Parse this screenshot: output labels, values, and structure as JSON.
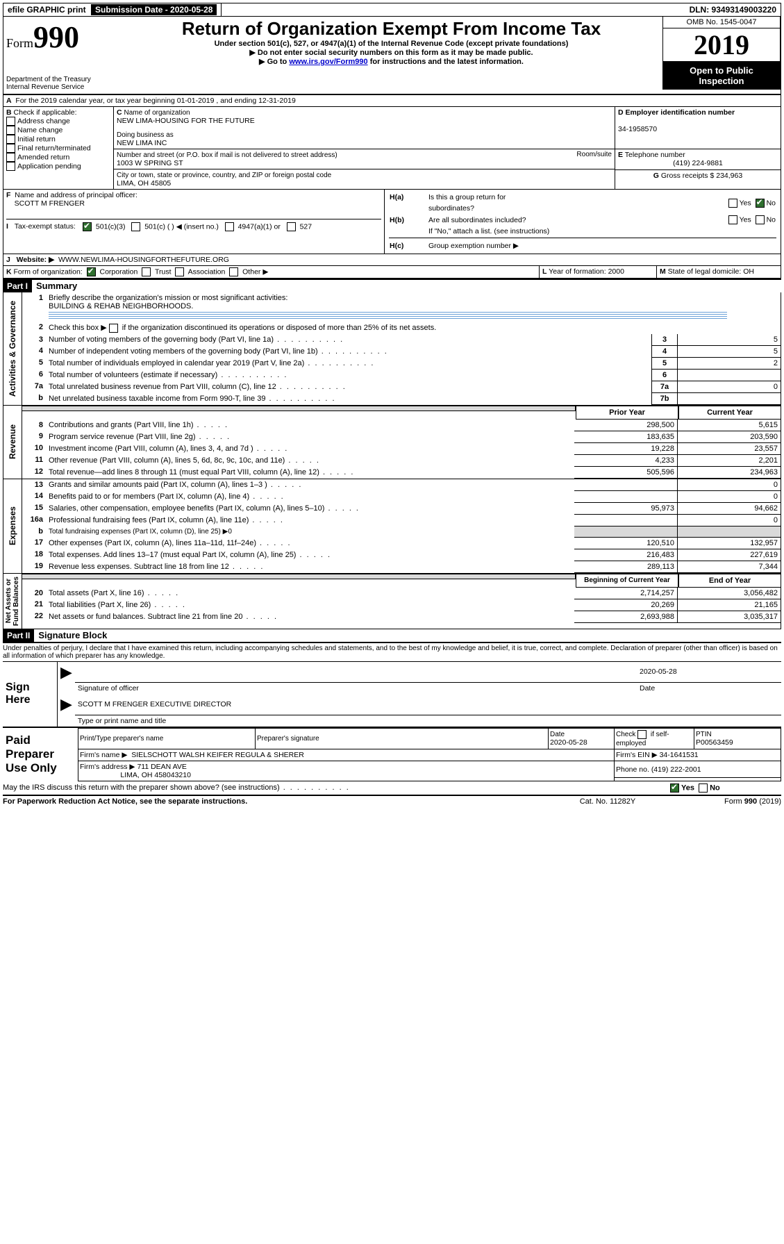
{
  "topbar": {
    "efile": "efile GRAPHIC print",
    "sub_date_label": "Submission Date - 2020-05-28",
    "dln": "DLN: 93493149003220"
  },
  "header": {
    "form_label": "Form",
    "form_no": "990",
    "title": "Return of Organization Exempt From Income Tax",
    "sub1": "Under section 501(c), 527, or 4947(a)(1) of the Internal Revenue Code (except private foundations)",
    "sub2": "Do not enter social security numbers on this form as it may be made public.",
    "sub3_a": "Go to ",
    "sub3_link": "www.irs.gov/Form990",
    "sub3_b": " for instructions and the latest information.",
    "dept": "Department of the Treasury",
    "irs": "Internal Revenue Service",
    "omb": "OMB No. 1545-0047",
    "year": "2019",
    "otp1": "Open to Public",
    "otp2": "Inspection"
  },
  "a": {
    "line": "For the 2019 calendar year, or tax year beginning 01-01-2019   , and ending 12-31-2019"
  },
  "b": {
    "label": "Check if applicable:",
    "items": [
      "Address change",
      "Name change",
      "Initial return",
      "Final return/terminated",
      "Amended return",
      "Application pending"
    ]
  },
  "c": {
    "name_label": "Name of organization",
    "name": "NEW LIMA-HOUSING FOR THE FUTURE",
    "dba_label": "Doing business as",
    "dba": "NEW LIMA INC",
    "addr_label": "Number and street (or P.O. box if mail is not delivered to street address)",
    "room_label": "Room/suite",
    "addr": "1003 W SPRING ST",
    "city_label": "City or town, state or province, country, and ZIP or foreign postal code",
    "city": "LIMA, OH  45805"
  },
  "d": {
    "label": "Employer identification number",
    "val": "34-1958570"
  },
  "e": {
    "label": "Telephone number",
    "val": "(419) 224-9881"
  },
  "g": {
    "label": "Gross receipts $",
    "val": "234,963"
  },
  "f": {
    "label": "Name and address of principal officer:",
    "val": "SCOTT M FRENGER"
  },
  "h": {
    "a": "Is this a group return for",
    "a2": "subordinates?",
    "b": "Are all subordinates included?",
    "b2": "If \"No,\" attach a list. (see instructions)",
    "c": "Group exemption number ▶",
    "yes": "Yes",
    "no": "No"
  },
  "i": {
    "label": "Tax-exempt status:",
    "o1": "501(c)(3)",
    "o2": "501(c) (  ) ◀ (insert no.)",
    "o3": "4947(a)(1) or",
    "o4": "527"
  },
  "j": {
    "label": "Website: ▶",
    "val": "WWW.NEWLIMA-HOUSINGFORTHEFUTURE.ORG"
  },
  "k": {
    "label": "Form of organization:",
    "o1": "Corporation",
    "o2": "Trust",
    "o3": "Association",
    "o4": "Other ▶"
  },
  "l": {
    "label": "Year of formation:",
    "val": "2000"
  },
  "m": {
    "label": "State of legal domicile:",
    "val": "OH"
  },
  "part1": {
    "hdr": "Part I",
    "title": "Summary"
  },
  "q1": {
    "num": "1",
    "text": "Briefly describe the organization's mission or most significant activities:",
    "ans": "BUILDING & REHAB NEIGHBORHOODS."
  },
  "q2": {
    "num": "2",
    "text": "Check this box ▶",
    "text2": " if the organization discontinued its operations or disposed of more than 25% of its net assets."
  },
  "gov_lines": [
    {
      "n": "3",
      "t": "Number of voting members of the governing body (Part VI, line 1a)",
      "ln": "3",
      "v": "5"
    },
    {
      "n": "4",
      "t": "Number of independent voting members of the governing body (Part VI, line 1b)",
      "ln": "4",
      "v": "5"
    },
    {
      "n": "5",
      "t": "Total number of individuals employed in calendar year 2019 (Part V, line 2a)",
      "ln": "5",
      "v": "2"
    },
    {
      "n": "6",
      "t": "Total number of volunteers (estimate if necessary)",
      "ln": "6",
      "v": ""
    },
    {
      "n": "7a",
      "t": "Total unrelated business revenue from Part VIII, column (C), line 12",
      "ln": "7a",
      "v": "0"
    },
    {
      "n": "b",
      "t": "Net unrelated business taxable income from Form 990-T, line 39",
      "ln": "7b",
      "v": ""
    }
  ],
  "col_hdr": {
    "py": "Prior Year",
    "cy": "Current Year",
    "by": "Beginning of Current Year",
    "ey": "End of Year"
  },
  "rev_lines": [
    {
      "n": "8",
      "t": "Contributions and grants (Part VIII, line 1h)",
      "py": "298,500",
      "cy": "5,615"
    },
    {
      "n": "9",
      "t": "Program service revenue (Part VIII, line 2g)",
      "py": "183,635",
      "cy": "203,590"
    },
    {
      "n": "10",
      "t": "Investment income (Part VIII, column (A), lines 3, 4, and 7d )",
      "py": "19,228",
      "cy": "23,557"
    },
    {
      "n": "11",
      "t": "Other revenue (Part VIII, column (A), lines 5, 6d, 8c, 9c, 10c, and 11e)",
      "py": "4,233",
      "cy": "2,201"
    },
    {
      "n": "12",
      "t": "Total revenue—add lines 8 through 11 (must equal Part VIII, column (A), line 12)",
      "py": "505,596",
      "cy": "234,963"
    }
  ],
  "exp_lines": [
    {
      "n": "13",
      "t": "Grants and similar amounts paid (Part IX, column (A), lines 1–3 )",
      "py": "",
      "cy": "0"
    },
    {
      "n": "14",
      "t": "Benefits paid to or for members (Part IX, column (A), line 4)",
      "py": "",
      "cy": "0"
    },
    {
      "n": "15",
      "t": "Salaries, other compensation, employee benefits (Part IX, column (A), lines 5–10)",
      "py": "95,973",
      "cy": "94,662"
    },
    {
      "n": "16a",
      "t": "Professional fundraising fees (Part IX, column (A), line 11e)",
      "py": "",
      "cy": "0"
    },
    {
      "n": "b",
      "t": "Total fundraising expenses (Part IX, column (D), line 25) ▶0",
      "py": "GREY",
      "cy": "GREY"
    },
    {
      "n": "17",
      "t": "Other expenses (Part IX, column (A), lines 11a–11d, 11f–24e)",
      "py": "120,510",
      "cy": "132,957"
    },
    {
      "n": "18",
      "t": "Total expenses. Add lines 13–17 (must equal Part IX, column (A), line 25)",
      "py": "216,483",
      "cy": "227,619"
    },
    {
      "n": "19",
      "t": "Revenue less expenses. Subtract line 18 from line 12",
      "py": "289,113",
      "cy": "7,344"
    }
  ],
  "na_lines": [
    {
      "n": "20",
      "t": "Total assets (Part X, line 16)",
      "py": "2,714,257",
      "cy": "3,056,482"
    },
    {
      "n": "21",
      "t": "Total liabilities (Part X, line 26)",
      "py": "20,269",
      "cy": "21,165"
    },
    {
      "n": "22",
      "t": "Net assets or fund balances. Subtract line 21 from line 20",
      "py": "2,693,988",
      "cy": "3,035,317"
    }
  ],
  "sides": {
    "gov": "Activities & Governance",
    "rev": "Revenue",
    "exp": "Expenses",
    "na": "Net Assets or\nFund Balances"
  },
  "part2": {
    "hdr": "Part II",
    "title": "Signature Block"
  },
  "perjury": "Under penalties of perjury, I declare that I have examined this return, including accompanying schedules and statements, and to the best of my knowledge and belief, it is true, correct, and complete. Declaration of preparer (other than officer) is based on all information of which preparer has any knowledge.",
  "sign": {
    "here": "Sign Here",
    "sig_label": "Signature of officer",
    "date_label": "Date",
    "date": "2020-05-28",
    "name": "SCOTT M FRENGER  EXECUTIVE DIRECTOR",
    "name_label": "Type or print name and title"
  },
  "paid": {
    "label": "Paid Preparer Use Only",
    "h1": "Print/Type preparer's name",
    "h2": "Preparer's signature",
    "h3": "Date",
    "date": "2020-05-28",
    "h4": "Check         if self-employed",
    "h5": "PTIN",
    "ptin": "P00563459",
    "firm_label": "Firm's name    ▶",
    "firm": "SIELSCHOTT WALSH KEIFER REGULA & SHERER",
    "ein_label": "Firm's EIN ▶",
    "ein": "34-1641531",
    "addr_label": "Firm's address ▶",
    "addr1": "711 DEAN AVE",
    "addr2": "LIMA, OH  458043210",
    "phone_label": "Phone no.",
    "phone": "(419) 222-2001"
  },
  "footer": {
    "discuss": "May the IRS discuss this return with the preparer shown above? (see instructions)",
    "yes": "Yes",
    "no": "No",
    "pra": "For Paperwork Reduction Act Notice, see the separate instructions.",
    "cat": "Cat. No. 11282Y",
    "form": "Form 990 (2019)"
  }
}
